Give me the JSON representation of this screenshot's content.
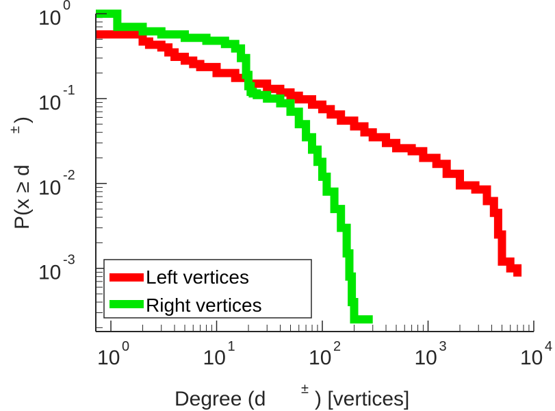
{
  "chart_data": {
    "type": "line",
    "subtype": "step-ccdf",
    "title": "",
    "xlabel": "Degree (d ±) [vertices]",
    "xlabel_main": "Degree (d",
    "xlabel_sup": "±",
    "xlabel_tail": ") [vertices]",
    "ylabel": "P(x ≥ d±)",
    "ylabel_main": "P(x ≥ d",
    "ylabel_sup": "±",
    "ylabel_tail": ")",
    "xscale": "log",
    "yscale": "log",
    "xlim": [
      0.72,
      10000
    ],
    "ylim": [
      0.00018,
      1.0
    ],
    "grid": false,
    "legend_position": "bottom-left",
    "x_ticks": [
      {
        "base": "10",
        "exp": "0",
        "value": 1
      },
      {
        "base": "10",
        "exp": "1",
        "value": 10
      },
      {
        "base": "10",
        "exp": "2",
        "value": 100
      },
      {
        "base": "10",
        "exp": "3",
        "value": 1000
      },
      {
        "base": "10",
        "exp": "4",
        "value": 10000
      }
    ],
    "y_ticks": [
      {
        "base": "10",
        "exp": "0",
        "value": 1
      },
      {
        "base": "10",
        "exp": "-1",
        "value": 0.1
      },
      {
        "base": "10",
        "exp": "-2",
        "value": 0.01
      },
      {
        "base": "10",
        "exp": "-3",
        "value": 0.001
      }
    ],
    "series": [
      {
        "name": "Left vertices",
        "color": "#ff0000",
        "x": [
          0.72,
          1.2,
          2.0,
          2.3,
          3.0,
          3.5,
          4.0,
          5.0,
          6.0,
          7.0,
          10,
          15,
          20,
          30,
          40,
          50,
          60,
          80,
          100,
          120,
          150,
          200,
          250,
          300,
          400,
          500,
          700,
          900,
          1200,
          1500,
          2000,
          2800,
          3600,
          4200,
          4600,
          5000,
          6000,
          7000
        ],
        "y": [
          0.57,
          0.57,
          0.47,
          0.43,
          0.4,
          0.35,
          0.31,
          0.28,
          0.255,
          0.235,
          0.2,
          0.175,
          0.15,
          0.13,
          0.118,
          0.108,
          0.098,
          0.085,
          0.075,
          0.065,
          0.055,
          0.047,
          0.04,
          0.035,
          0.03,
          0.026,
          0.024,
          0.02,
          0.017,
          0.013,
          0.0095,
          0.0085,
          0.0062,
          0.0045,
          0.0025,
          0.0012,
          0.001,
          0.0008
        ]
      },
      {
        "name": "Right vertices",
        "color": "#00e600",
        "x": [
          0.72,
          1.15,
          2.0,
          3.0,
          5.0,
          8.0,
          12,
          15,
          17,
          19,
          20,
          21,
          22,
          24,
          30,
          40,
          50,
          60,
          70,
          80,
          90,
          100,
          110,
          130,
          150,
          170,
          180,
          190,
          200,
          300
        ],
        "y": [
          1.0,
          0.7,
          0.62,
          0.57,
          0.52,
          0.48,
          0.44,
          0.39,
          0.3,
          0.19,
          0.14,
          0.12,
          0.115,
          0.11,
          0.1,
          0.088,
          0.07,
          0.05,
          0.035,
          0.025,
          0.018,
          0.012,
          0.008,
          0.005,
          0.003,
          0.0015,
          0.0008,
          0.0004,
          0.00025,
          0.00025
        ]
      }
    ]
  }
}
